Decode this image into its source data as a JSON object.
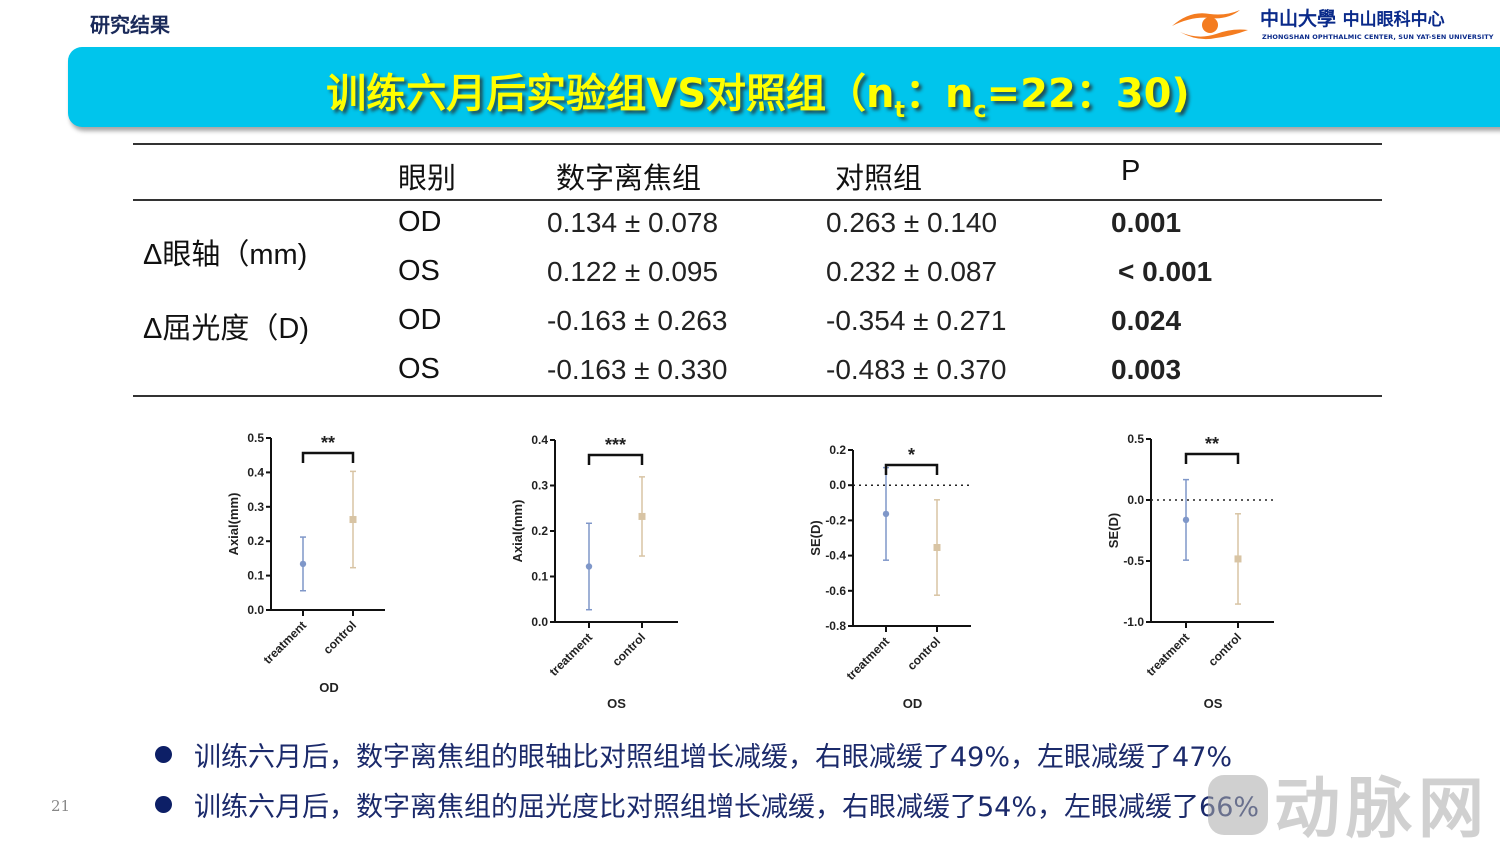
{
  "header": {
    "section_label": "研究结果",
    "logo": {
      "icon": "eye-logo-icon",
      "cn_university": "中山大學",
      "cn_center": "中山眼科中心",
      "en": "ZHONGSHAN OPHTHALMIC CENTER, SUN YAT-SEN UNIVERSITY",
      "color_orange": "#f47c20",
      "color_blue": "#0a2a8a"
    }
  },
  "title": {
    "main": "训练六月后实验组VS对照组（n",
    "sub_t": "t",
    "sep": "：n",
    "sub_c": "c",
    "tail": "=22：30)",
    "bg_color": "#00c5ec",
    "text_color": "#ffff00"
  },
  "table": {
    "headers": [
      "",
      "眼别",
      "数字离焦组",
      "对照组",
      "P"
    ],
    "groups": [
      {
        "label": "Δ眼轴（mm)",
        "rows": [
          {
            "eye": "OD",
            "treatment": "0.134 ± 0.078",
            "control": "0.263 ± 0.140",
            "p": "0.001"
          },
          {
            "eye": "OS",
            "treatment": "0.122 ± 0.095",
            "control": "0.232 ± 0.087",
            "p": "< 0.001"
          }
        ]
      },
      {
        "label": "Δ屈光度（D)",
        "rows": [
          {
            "eye": "OD",
            "treatment": "-0.163 ± 0.263",
            "control": "-0.354 ± 0.271",
            "p": "0.024"
          },
          {
            "eye": "OS",
            "treatment": "-0.163 ± 0.330",
            "control": "-0.483 ± 0.370",
            "p": "0.003"
          }
        ]
      }
    ]
  },
  "chart_data": [
    {
      "type": "scatter",
      "title": "",
      "xlabel": "OD",
      "ylabel": "Axial(mm)",
      "categories": [
        "treatment",
        "control"
      ],
      "series": [
        {
          "name": "treatment",
          "mean": 0.134,
          "sd": 0.078,
          "color": "#7f97c9"
        },
        {
          "name": "control",
          "mean": 0.263,
          "sd": 0.14,
          "color": "#d8c4a4"
        }
      ],
      "ylim": [
        0.0,
        0.5
      ],
      "yticks": [
        "0.0",
        "0.1",
        "0.2",
        "0.3",
        "0.4",
        "0.5"
      ],
      "significance": "**",
      "zero_line": false,
      "grid": false
    },
    {
      "type": "scatter",
      "title": "",
      "xlabel": "OS",
      "ylabel": "Axial(mm)",
      "categories": [
        "treatment",
        "control"
      ],
      "series": [
        {
          "name": "treatment",
          "mean": 0.122,
          "sd": 0.095,
          "color": "#7f97c9"
        },
        {
          "name": "control",
          "mean": 0.232,
          "sd": 0.087,
          "color": "#d8c4a4"
        }
      ],
      "ylim": [
        0.0,
        0.4
      ],
      "yticks": [
        "0.0",
        "0.1",
        "0.2",
        "0.3",
        "0.4"
      ],
      "significance": "***",
      "zero_line": false,
      "grid": false
    },
    {
      "type": "scatter",
      "title": "",
      "xlabel": "OD",
      "ylabel": "SE(D)",
      "categories": [
        "treatment",
        "control"
      ],
      "series": [
        {
          "name": "treatment",
          "mean": -0.163,
          "sd": 0.263,
          "color": "#7f97c9"
        },
        {
          "name": "control",
          "mean": -0.354,
          "sd": 0.271,
          "color": "#d8c4a4"
        }
      ],
      "ylim": [
        -0.8,
        0.2
      ],
      "yticks": [
        "-0.8",
        "-0.6",
        "-0.4",
        "-0.2",
        "0.0",
        "0.2"
      ],
      "significance": "*",
      "zero_line": true,
      "grid": false
    },
    {
      "type": "scatter",
      "title": "",
      "xlabel": "OS",
      "ylabel": "SE(D)",
      "categories": [
        "treatment",
        "control"
      ],
      "series": [
        {
          "name": "treatment",
          "mean": -0.163,
          "sd": 0.33,
          "color": "#7f97c9"
        },
        {
          "name": "control",
          "mean": -0.483,
          "sd": 0.37,
          "color": "#d8c4a4"
        }
      ],
      "ylim": [
        -1.0,
        0.5
      ],
      "yticks": [
        "-1.0",
        "-0.5",
        "0.0",
        "0.5"
      ],
      "significance": "**",
      "zero_line": true,
      "grid": false
    }
  ],
  "bullets": [
    "训练六月后，数字离焦组的眼轴比对照组增长减缓，右眼减缓了49%，左眼减缓了47%",
    "训练六月后，数字离焦组的屈光度比对照组增长减缓，右眼减缓了54%，左眼减缓了66%"
  ],
  "page_number": "21",
  "watermark": "动脉网"
}
